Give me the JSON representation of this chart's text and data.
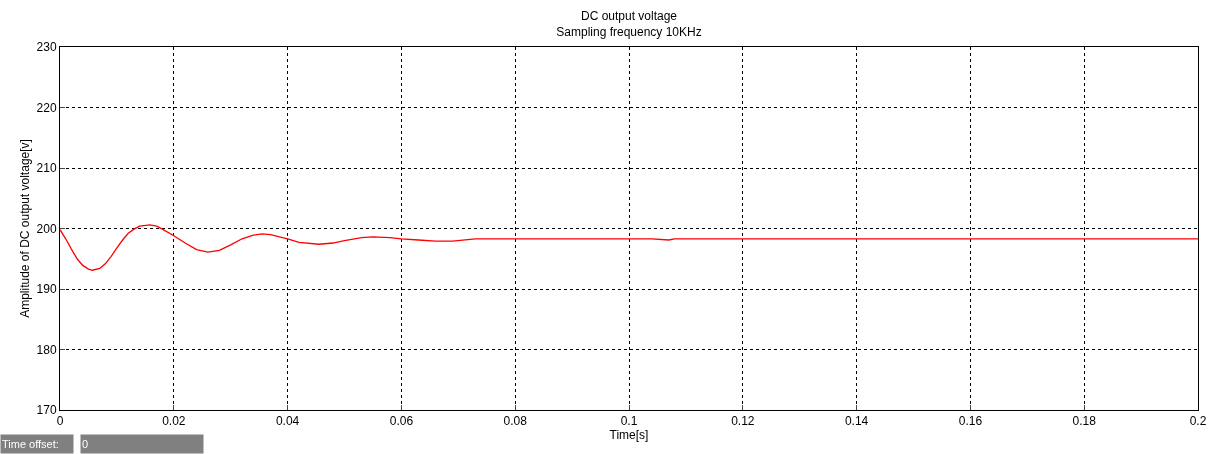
{
  "chart_data": {
    "type": "line",
    "title": "DC output voltage",
    "subtitle": "Sampling frequency 10KHz",
    "xlabel": "Time[s]",
    "ylabel": "Amplitude of DC output voltage[v]",
    "x": [
      0,
      0.001,
      0.002,
      0.003,
      0.004,
      0.005,
      0.0057,
      0.007,
      0.008,
      0.009,
      0.01,
      0.011,
      0.012,
      0.013,
      0.014,
      0.0158,
      0.017,
      0.018,
      0.02,
      0.022,
      0.024,
      0.026,
      0.028,
      0.03,
      0.032,
      0.034,
      0.0355,
      0.037,
      0.04,
      0.042,
      0.0455,
      0.048,
      0.05,
      0.053,
      0.055,
      0.058,
      0.06,
      0.063,
      0.066,
      0.069,
      0.073,
      0.092,
      0.104,
      0.107,
      0.108,
      0.2
    ],
    "series": [
      {
        "color": "#ff0000",
        "values": [
          199.8,
          198.3,
          196.6,
          195.0,
          193.9,
          193.3,
          193.1,
          193.4,
          194.2,
          195.4,
          196.8,
          198.1,
          199.2,
          199.9,
          200.4,
          200.6,
          200.4,
          199.9,
          198.8,
          197.6,
          196.5,
          196.1,
          196.4,
          197.3,
          198.3,
          198.9,
          199.1,
          199.0,
          198.3,
          197.7,
          197.4,
          197.6,
          198.0,
          198.5,
          198.6,
          198.5,
          198.3,
          198.1,
          197.9,
          197.9,
          198.3,
          198.3,
          198.3,
          198.1,
          198.3,
          198.3
        ]
      }
    ],
    "xlim": [
      0,
      0.2
    ],
    "xticks": [
      0,
      0.02,
      0.04,
      0.06,
      0.08,
      0.1,
      0.12,
      0.14,
      0.16,
      0.18,
      0.2
    ],
    "ylim": [
      170,
      230
    ],
    "yticks": [
      170,
      180,
      190,
      200,
      210,
      220,
      230
    ],
    "grid": true,
    "marker": "none",
    "line_style": "solid",
    "annotations": [
      "Time offset:",
      "0"
    ]
  }
}
